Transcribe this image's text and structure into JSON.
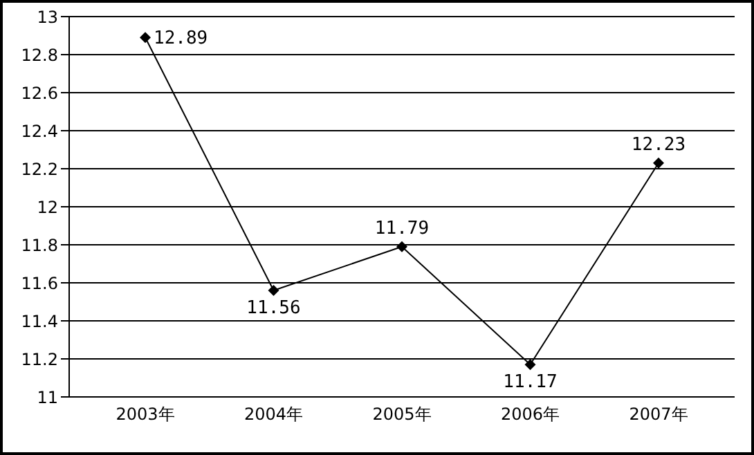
{
  "chart_data": {
    "type": "line",
    "categories": [
      "2003年",
      "2004年",
      "2005年",
      "2006年",
      "2007年"
    ],
    "series": [
      {
        "color": "#000000",
        "values": [
          12.89,
          11.56,
          11.79,
          11.17,
          12.23
        ]
      }
    ],
    "ylim": [
      11,
      13
    ],
    "yticks": [
      11,
      11.2,
      11.4,
      11.6,
      11.8,
      12,
      12.2,
      12.4,
      12.6,
      12.8,
      13
    ],
    "grid": "y",
    "marker": "diamond",
    "line_style": "solid",
    "data_labels": true,
    "legend": false
  }
}
